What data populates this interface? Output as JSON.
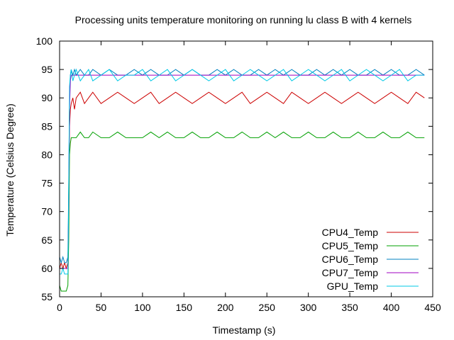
{
  "chart_data": {
    "type": "line",
    "title": "Processing units temperature monitoring on running lu class B with 4 kernels",
    "xlabel": "Timestamp (s)",
    "ylabel": "Temperature (Celsius Degree)",
    "xlim": [
      0,
      450
    ],
    "ylim": [
      55,
      100
    ],
    "xticks": [
      "0",
      "50",
      "100",
      "150",
      "200",
      "250",
      "300",
      "350",
      "400",
      "450"
    ],
    "yticks": [
      "55",
      "60",
      "65",
      "70",
      "75",
      "80",
      "85",
      "90",
      "95",
      "100"
    ],
    "grid": false,
    "legend_position": "bottom-right",
    "series": [
      {
        "name": "CPU4_Temp",
        "color": "#cc0000",
        "x": [
          0,
          2,
          4,
          6,
          8,
          10,
          11,
          12,
          13,
          14,
          16,
          18,
          20,
          25,
          30,
          35,
          40,
          50,
          60,
          70,
          80,
          90,
          100,
          110,
          120,
          130,
          140,
          150,
          160,
          170,
          180,
          190,
          200,
          210,
          220,
          230,
          240,
          250,
          260,
          270,
          280,
          290,
          300,
          310,
          320,
          330,
          340,
          350,
          360,
          370,
          380,
          390,
          400,
          410,
          420,
          430,
          440
        ],
        "values": [
          60,
          61,
          60,
          61,
          60,
          61,
          70,
          85,
          88,
          89,
          90,
          88,
          90,
          91,
          89,
          90,
          91,
          89,
          90,
          91,
          90,
          89,
          90,
          91,
          89,
          90,
          91,
          90,
          89,
          90,
          91,
          90,
          89,
          90,
          91,
          89,
          90,
          91,
          90,
          89,
          91,
          90,
          89,
          90,
          91,
          90,
          89,
          90,
          91,
          90,
          89,
          90,
          91,
          90,
          89,
          91,
          90
        ]
      },
      {
        "name": "CPU5_Temp",
        "color": "#00a000",
        "x": [
          0,
          2,
          4,
          6,
          8,
          10,
          11,
          12,
          13,
          14,
          16,
          18,
          20,
          25,
          30,
          35,
          40,
          50,
          60,
          70,
          80,
          90,
          100,
          110,
          120,
          130,
          140,
          150,
          160,
          170,
          180,
          190,
          200,
          210,
          220,
          230,
          240,
          250,
          260,
          270,
          280,
          290,
          300,
          310,
          320,
          330,
          340,
          350,
          360,
          370,
          380,
          390,
          400,
          410,
          420,
          430,
          440
        ],
        "values": [
          57,
          56,
          56,
          56,
          56,
          57,
          65,
          80,
          82,
          83,
          83,
          83,
          83,
          84,
          83,
          83,
          84,
          83,
          83,
          84,
          83,
          83,
          83,
          84,
          83,
          84,
          83,
          83,
          84,
          83,
          83,
          84,
          83,
          83,
          84,
          83,
          83,
          84,
          83,
          84,
          83,
          83,
          84,
          83,
          83,
          84,
          83,
          83,
          84,
          83,
          83,
          84,
          83,
          83,
          84,
          83,
          83
        ]
      },
      {
        "name": "CPU6_Temp",
        "color": "#0080c0",
        "x": [
          0,
          2,
          4,
          6,
          8,
          10,
          11,
          12,
          13,
          14,
          16,
          18,
          20,
          25,
          30,
          35,
          40,
          50,
          60,
          70,
          80,
          90,
          100,
          110,
          120,
          130,
          140,
          150,
          160,
          170,
          180,
          190,
          200,
          210,
          220,
          230,
          240,
          250,
          260,
          270,
          280,
          290,
          300,
          310,
          320,
          330,
          340,
          350,
          360,
          370,
          380,
          390,
          400,
          410,
          420,
          430,
          440
        ],
        "values": [
          62,
          61,
          62,
          61,
          61,
          62,
          75,
          90,
          94,
          95,
          94,
          95,
          94,
          95,
          94,
          94,
          95,
          94,
          95,
          94,
          94,
          95,
          94,
          95,
          94,
          94,
          95,
          94,
          95,
          94,
          94,
          95,
          94,
          95,
          94,
          94,
          95,
          94,
          95,
          94,
          95,
          94,
          94,
          95,
          94,
          95,
          94,
          95,
          94,
          94,
          95,
          94,
          95,
          94,
          94,
          95,
          94
        ]
      },
      {
        "name": "CPU7_Temp",
        "color": "#a000c0",
        "x": [
          0,
          10,
          11,
          12,
          13,
          14,
          20,
          440
        ],
        "values": [
          60,
          60,
          72,
          88,
          93,
          94,
          94,
          94
        ]
      },
      {
        "name": "GPU_Temp",
        "color": "#00c8e6",
        "x": [
          0,
          2,
          4,
          6,
          8,
          10,
          11,
          12,
          13,
          14,
          16,
          18,
          20,
          25,
          30,
          35,
          40,
          50,
          60,
          70,
          80,
          90,
          100,
          110,
          120,
          130,
          140,
          150,
          160,
          170,
          180,
          190,
          200,
          210,
          220,
          230,
          240,
          250,
          260,
          270,
          280,
          290,
          300,
          310,
          320,
          330,
          340,
          350,
          360,
          370,
          380,
          390,
          400,
          410,
          420,
          430,
          440
        ],
        "values": [
          59,
          59,
          60,
          59,
          59,
          59,
          74,
          92,
          94,
          95,
          93,
          94,
          95,
          93,
          94,
          95,
          93,
          94,
          95,
          93,
          94,
          94,
          95,
          93,
          94,
          95,
          93,
          94,
          95,
          94,
          93,
          94,
          95,
          93,
          94,
          95,
          94,
          93,
          94,
          95,
          93,
          94,
          95,
          94,
          93,
          94,
          95,
          93,
          94,
          95,
          94,
          93,
          94,
          95,
          93,
          94,
          94
        ]
      }
    ]
  }
}
